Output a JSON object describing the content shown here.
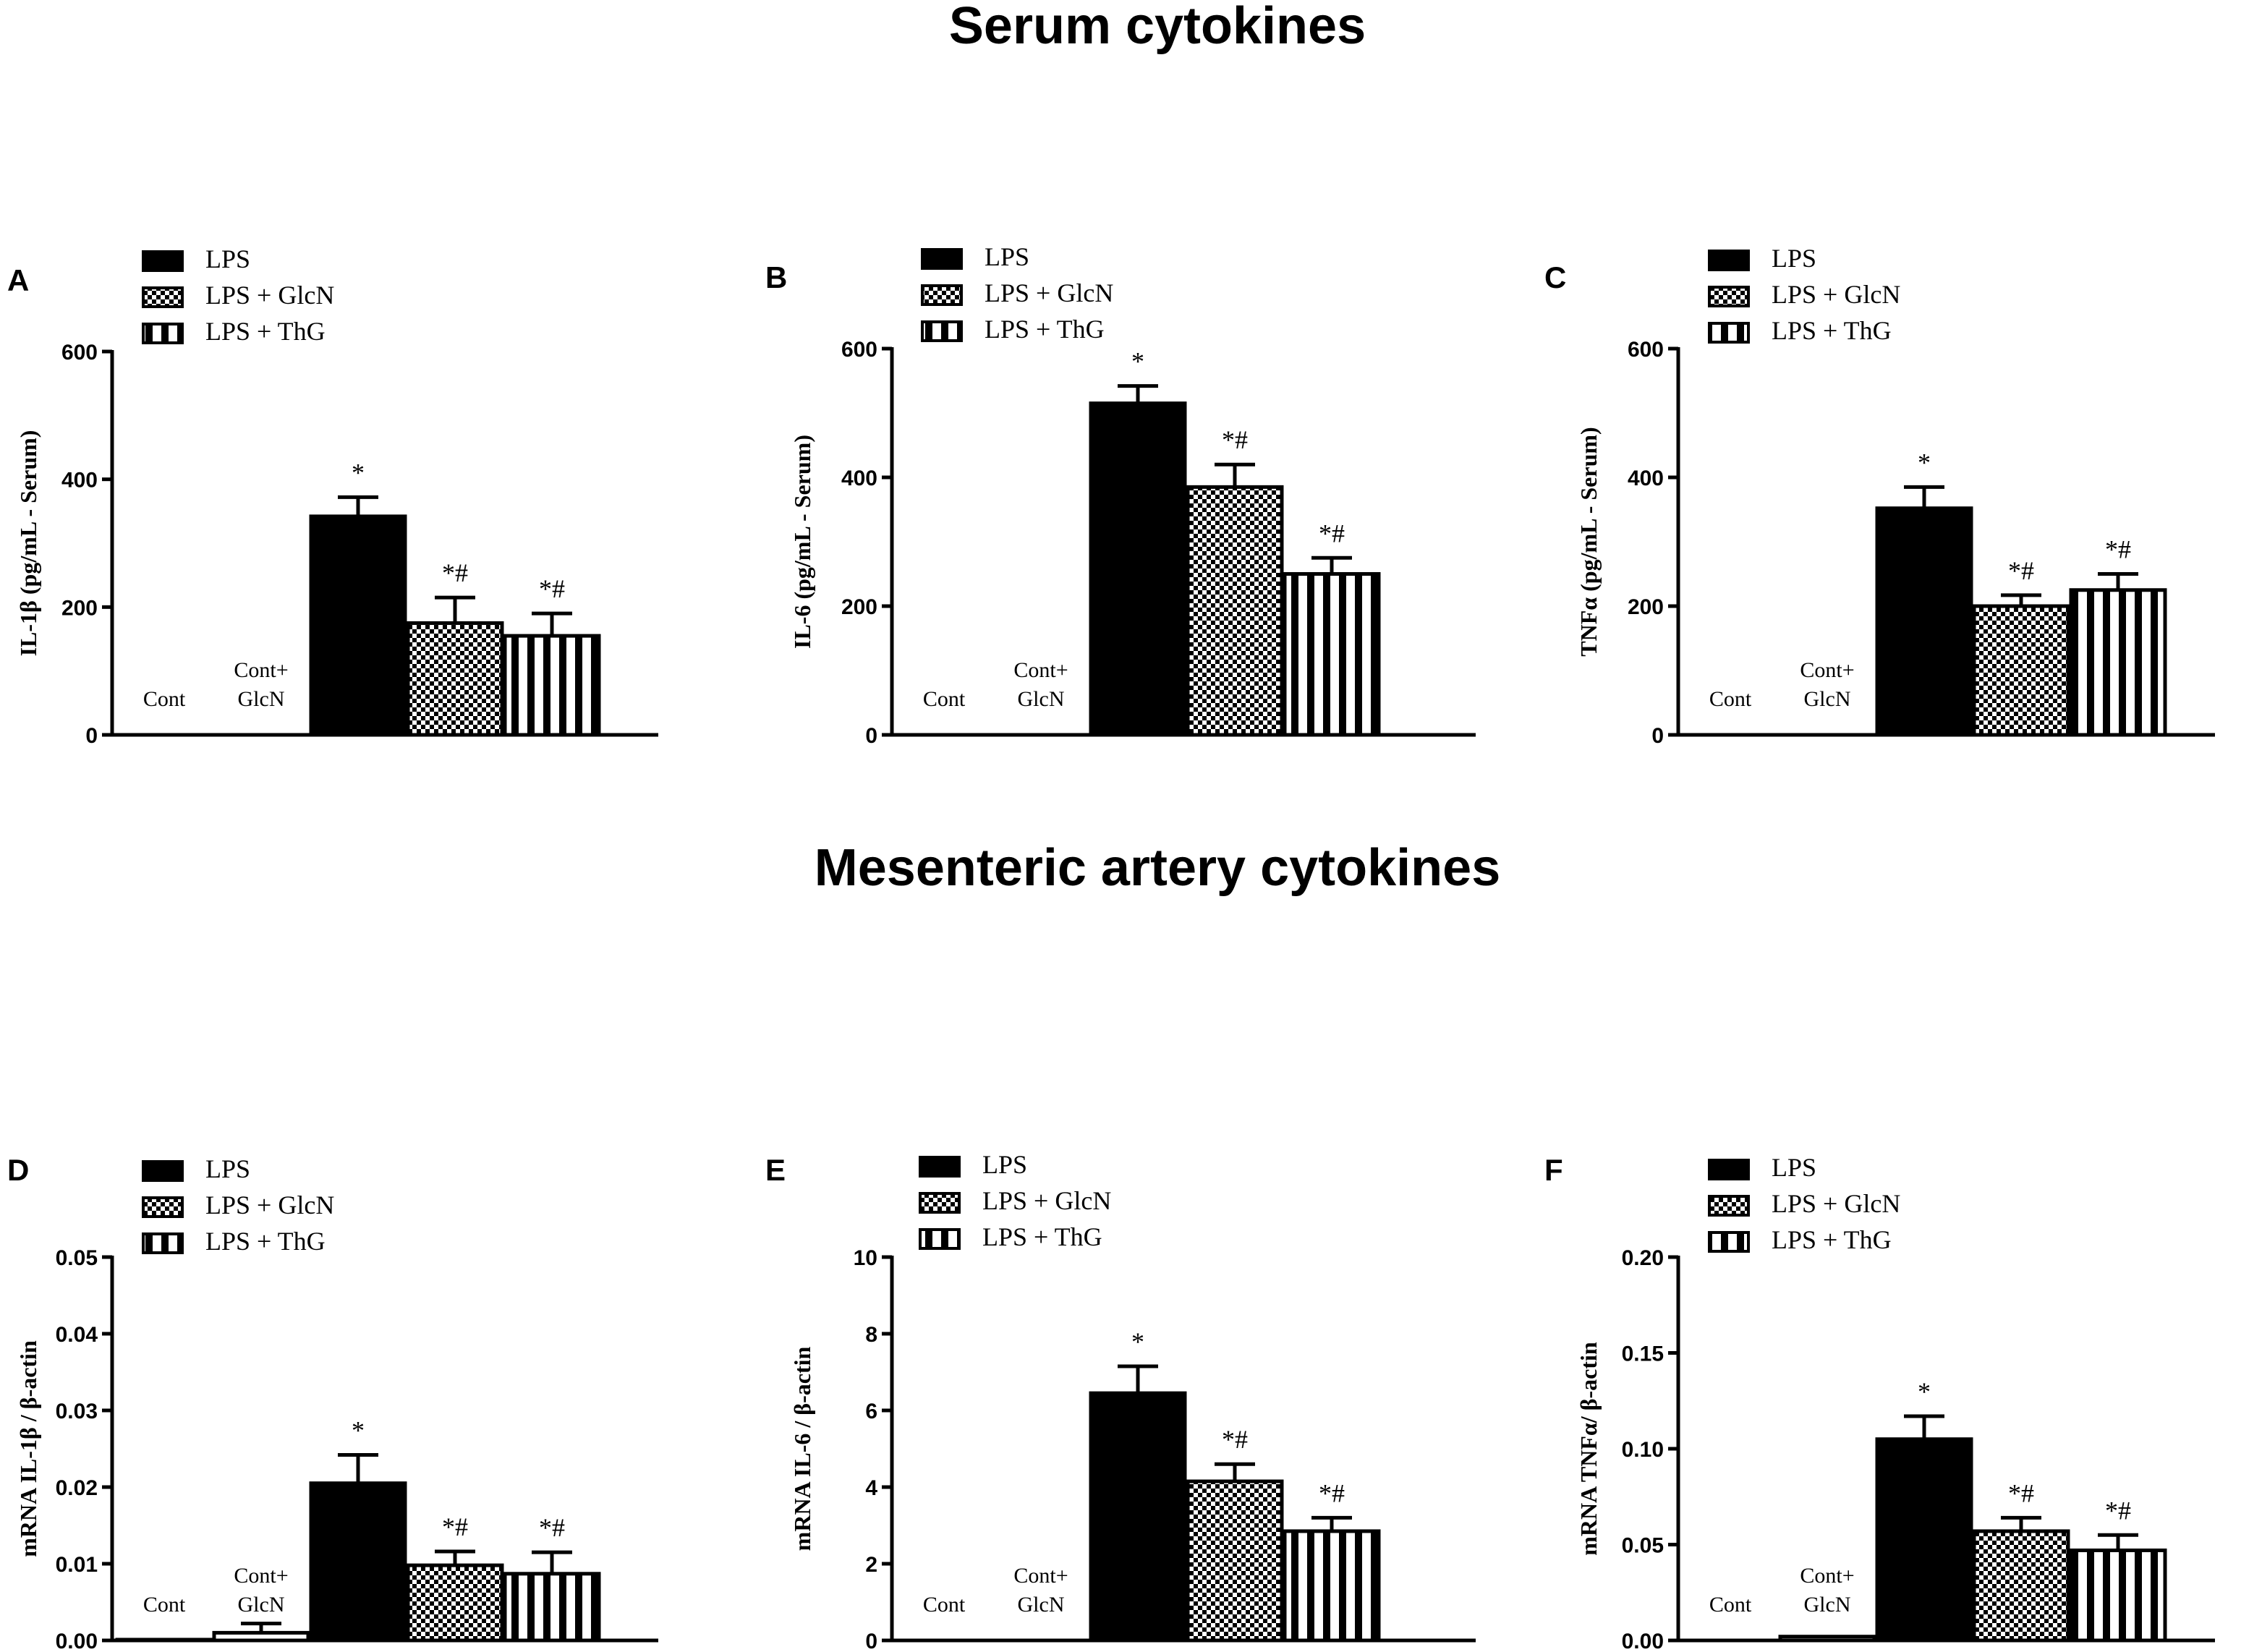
{
  "section_titles": {
    "serum": "Serum cytokines",
    "mesenteric": "Mesenteric artery cytokines"
  },
  "legend": [
    "LPS",
    "LPS + GlcN",
    "LPS + ThG"
  ],
  "chart_data": [
    {
      "panel": "A",
      "type": "bar",
      "section": "serum",
      "ylabel": "IL-1β  (pg/mL - Serum)",
      "ylim": [
        0,
        600
      ],
      "yticks": [
        "0",
        "200",
        "400",
        "600"
      ],
      "categories": [
        "Cont",
        "Cont+\nGlcN",
        "LPS",
        "LPS + GlcN",
        "LPS + ThG"
      ],
      "values": [
        0,
        0,
        342,
        175,
        155
      ],
      "errors": [
        0,
        0,
        30,
        40,
        35
      ],
      "significance": [
        "",
        "",
        "*",
        "*#",
        "*#"
      ]
    },
    {
      "panel": "B",
      "type": "bar",
      "section": "serum",
      "ylabel": "IL-6  (pg/mL - Serum)",
      "ylim": [
        0,
        600
      ],
      "yticks": [
        "0",
        "200",
        "400",
        "600"
      ],
      "categories": [
        "Cont",
        "Cont+\nGlcN",
        "LPS",
        "LPS + GlcN",
        "LPS + ThG"
      ],
      "values": [
        0,
        0,
        515,
        385,
        250
      ],
      "errors": [
        0,
        0,
        27,
        35,
        25
      ],
      "significance": [
        "",
        "",
        "*",
        "*#",
        "*#"
      ]
    },
    {
      "panel": "C",
      "type": "bar",
      "section": "serum",
      "ylabel": "TNFα (pg/mL - Serum)",
      "ylim": [
        0,
        600
      ],
      "yticks": [
        "0",
        "200",
        "400",
        "600"
      ],
      "categories": [
        "Cont",
        "Cont+\nGlcN",
        "LPS",
        "LPS + GlcN",
        "LPS + ThG"
      ],
      "values": [
        0,
        0,
        352,
        200,
        225
      ],
      "errors": [
        0,
        0,
        33,
        17,
        25
      ],
      "significance": [
        "",
        "",
        "*",
        "*#",
        "*#"
      ]
    },
    {
      "panel": "D",
      "type": "bar",
      "section": "mesenteric",
      "ylabel": "mRNA IL-1β / β-actin",
      "ylim": [
        0,
        0.05
      ],
      "yticks": [
        "0.00",
        "0.01",
        "0.02",
        "0.03",
        "0.04",
        "0.05"
      ],
      "categories": [
        "Cont",
        "Cont+\nGlcN",
        "LPS",
        "LPS + GlcN",
        "LPS + ThG"
      ],
      "values": [
        0.0001,
        0.001,
        0.0205,
        0.0098,
        0.0087
      ],
      "errors": [
        0,
        0.0012,
        0.0037,
        0.0018,
        0.0028
      ],
      "significance": [
        "",
        "",
        "*",
        "*#",
        "*#"
      ]
    },
    {
      "panel": "E",
      "type": "bar",
      "section": "mesenteric",
      "ylabel": "mRNA IL-6 / β-actin",
      "ylim": [
        0,
        10
      ],
      "yticks": [
        "0",
        "2",
        "4",
        "6",
        "8",
        "10"
      ],
      "categories": [
        "Cont",
        "Cont+\nGlcN",
        "LPS",
        "LPS + GlcN",
        "LPS + ThG"
      ],
      "values": [
        0,
        0,
        6.45,
        4.15,
        2.85
      ],
      "errors": [
        0,
        0,
        0.7,
        0.45,
        0.35
      ],
      "significance": [
        "",
        "",
        "*",
        "*#",
        "*#"
      ]
    },
    {
      "panel": "F",
      "type": "bar",
      "section": "mesenteric",
      "ylabel": "mRNA TNFα/ β-actin",
      "ylim": [
        0,
        0.2
      ],
      "yticks": [
        "0.00",
        "0.05",
        "0.10",
        "0.15",
        "0.20"
      ],
      "categories": [
        "Cont",
        "Cont+\nGlcN",
        "LPS",
        "LPS + GlcN",
        "LPS + ThG"
      ],
      "values": [
        0,
        0.002,
        0.105,
        0.057,
        0.047
      ],
      "errors": [
        0,
        0,
        0.012,
        0.007,
        0.008
      ],
      "significance": [
        "",
        "",
        "*",
        "*#",
        "*#"
      ]
    }
  ]
}
